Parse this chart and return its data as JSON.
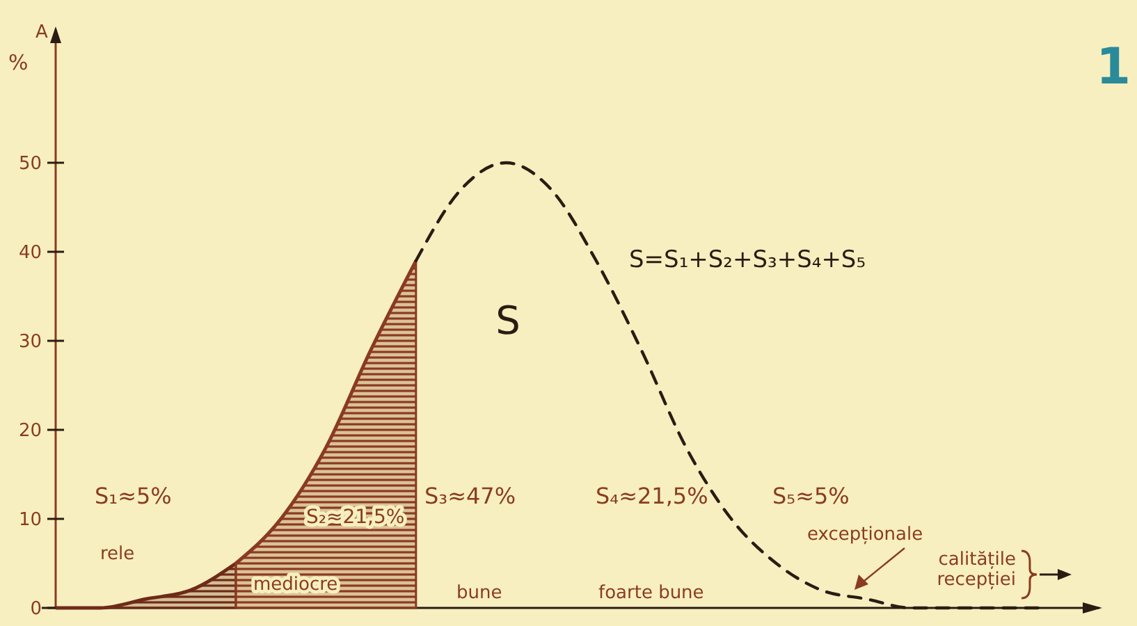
{
  "chart_data": {
    "type": "line",
    "ylabel": "A",
    "categories": [
      null,
      null,
      null,
      null,
      null,
      null,
      null,
      null,
      null,
      null,
      null,
      null,
      null,
      null,
      null,
      null,
      null,
      null,
      null,
      null,
      null,
      null,
      null
    ],
    "ylim": [
      0,
      65
    ],
    "yticks": [
      0,
      10,
      20,
      30,
      40,
      50
    ],
    "series": [
      {
        "type": "area",
        "color": "#6e2a18",
        "values": [
          0,
          0,
          1,
          2,
          5,
          null,
          null,
          null,
          null,
          null,
          null,
          null,
          null,
          null,
          null,
          null,
          null,
          null,
          null,
          null,
          null,
          null,
          null
        ]
      },
      {
        "type": "area",
        "color": "#8a3a22",
        "values": [
          null,
          null,
          null,
          null,
          5,
          10,
          18,
          29,
          39,
          null,
          null,
          null,
          null,
          null,
          null,
          null,
          null,
          null,
          null,
          null,
          null,
          null,
          null
        ]
      },
      {
        "color": "#2a1c12",
        "line_style": "dashed",
        "values": [
          null,
          null,
          null,
          null,
          null,
          null,
          null,
          null,
          39,
          47,
          50,
          47,
          39,
          29,
          18,
          10,
          5,
          2,
          1,
          0,
          0,
          0,
          0
        ]
      }
    ],
    "annotations": [
      "S",
      "S=S₁+S₂+S₃+S₄+S₅",
      "S₁≈5%",
      "S₂≈21,5%",
      "S₃≈47%",
      "S₄≈21,5%",
      "S₅≈5%",
      "rele",
      "mediocre",
      "bune",
      "foarte bune",
      "excepționale",
      "calitățile recepției",
      "%",
      "1"
    ]
  }
}
